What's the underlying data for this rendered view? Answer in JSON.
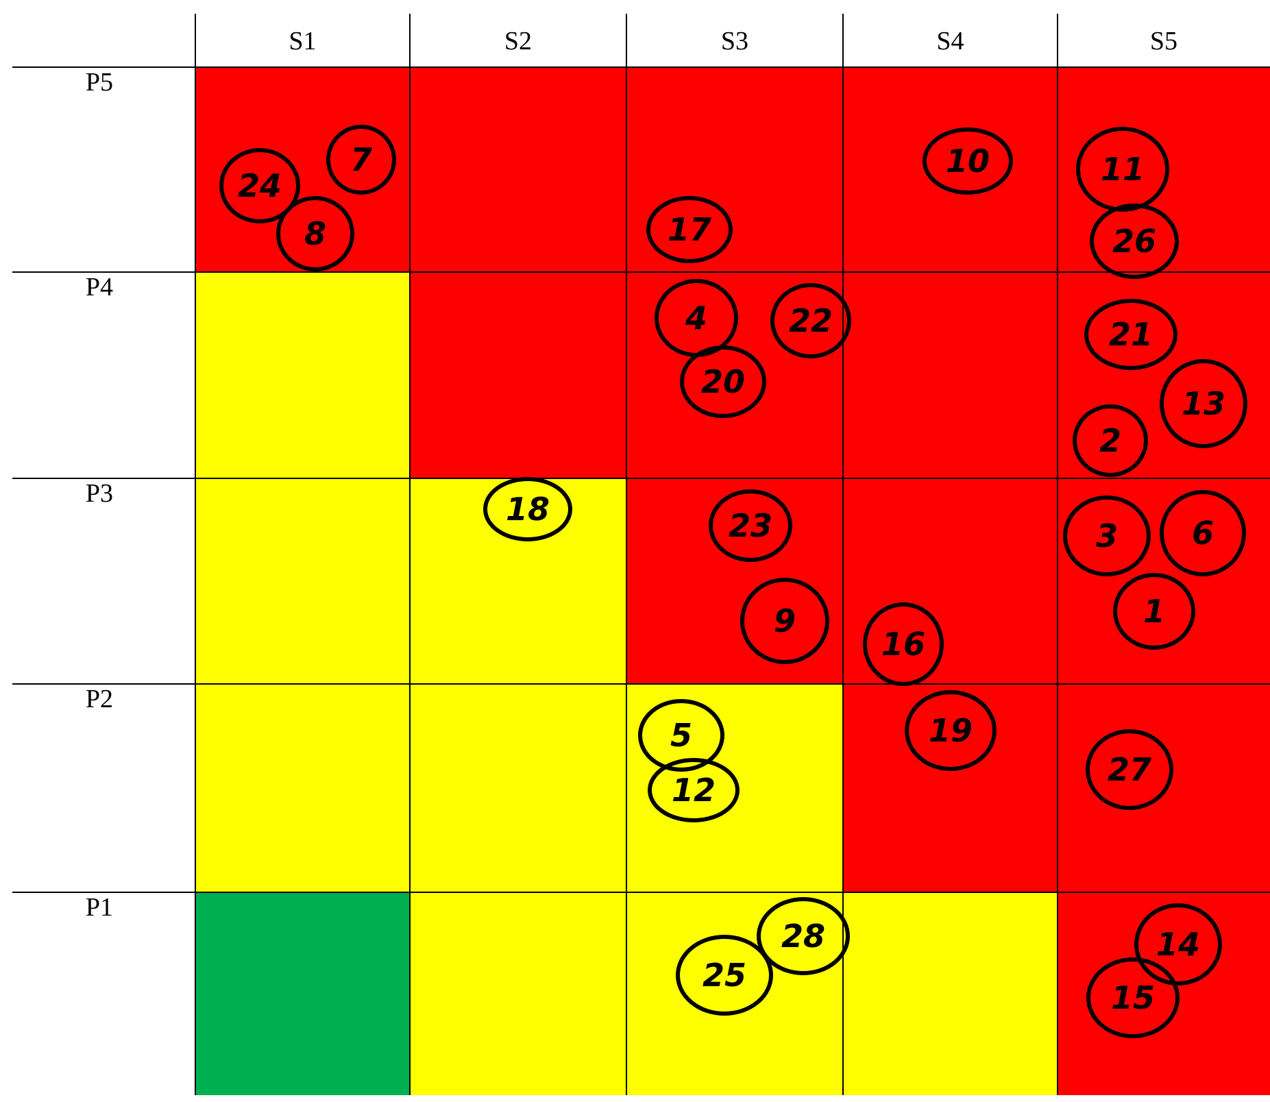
{
  "columns": [
    "S1",
    "S2",
    "S3",
    "S4",
    "S5"
  ],
  "rows": [
    "P5",
    "P4",
    "P3",
    "P2",
    "P1"
  ],
  "colors": {
    "red": "#ff0000",
    "yellow": "#ffff00",
    "green": "#00b050",
    "line": "#000000"
  },
  "cell_colors": [
    [
      "red",
      "red",
      "red",
      "red",
      "red"
    ],
    [
      "yellow",
      "red",
      "red",
      "red",
      "red"
    ],
    [
      "yellow",
      "yellow",
      "red",
      "red",
      "red"
    ],
    [
      "yellow",
      "yellow",
      "yellow",
      "red",
      "red"
    ],
    [
      "green",
      "yellow",
      "yellow",
      "yellow",
      "red"
    ]
  ],
  "risks": [
    {
      "label": "7",
      "row": "P5",
      "col": "S1"
    },
    {
      "label": "24",
      "row": "P5",
      "col": "S1"
    },
    {
      "label": "8",
      "row": "P5",
      "col": "S1"
    },
    {
      "label": "17",
      "row": "P5",
      "col": "S3"
    },
    {
      "label": "10",
      "row": "P5",
      "col": "S4"
    },
    {
      "label": "11",
      "row": "P5",
      "col": "S5"
    },
    {
      "label": "26",
      "row": "P5",
      "col": "S5"
    },
    {
      "label": "4",
      "row": "P4",
      "col": "S3"
    },
    {
      "label": "22",
      "row": "P4",
      "col": "S3"
    },
    {
      "label": "20",
      "row": "P4",
      "col": "S3"
    },
    {
      "label": "21",
      "row": "P4",
      "col": "S5"
    },
    {
      "label": "13",
      "row": "P4",
      "col": "S5"
    },
    {
      "label": "2",
      "row": "P4",
      "col": "S5"
    },
    {
      "label": "18",
      "row": "P3",
      "col": "S2"
    },
    {
      "label": "23",
      "row": "P3",
      "col": "S3"
    },
    {
      "label": "9",
      "row": "P3",
      "col": "S3"
    },
    {
      "label": "16",
      "row": "P3",
      "col": "S4"
    },
    {
      "label": "3",
      "row": "P3",
      "col": "S5"
    },
    {
      "label": "6",
      "row": "P3",
      "col": "S5"
    },
    {
      "label": "1",
      "row": "P3",
      "col": "S5"
    },
    {
      "label": "5",
      "row": "P2",
      "col": "S3"
    },
    {
      "label": "12",
      "row": "P2",
      "col": "S3"
    },
    {
      "label": "19",
      "row": "P2",
      "col": "S4"
    },
    {
      "label": "27",
      "row": "P2",
      "col": "S5"
    },
    {
      "label": "28",
      "row": "P1",
      "col": "S3"
    },
    {
      "label": "25",
      "row": "P1",
      "col": "S3"
    },
    {
      "label": "14",
      "row": "P1",
      "col": "S5"
    },
    {
      "label": "15",
      "row": "P1",
      "col": "S5"
    }
  ]
}
